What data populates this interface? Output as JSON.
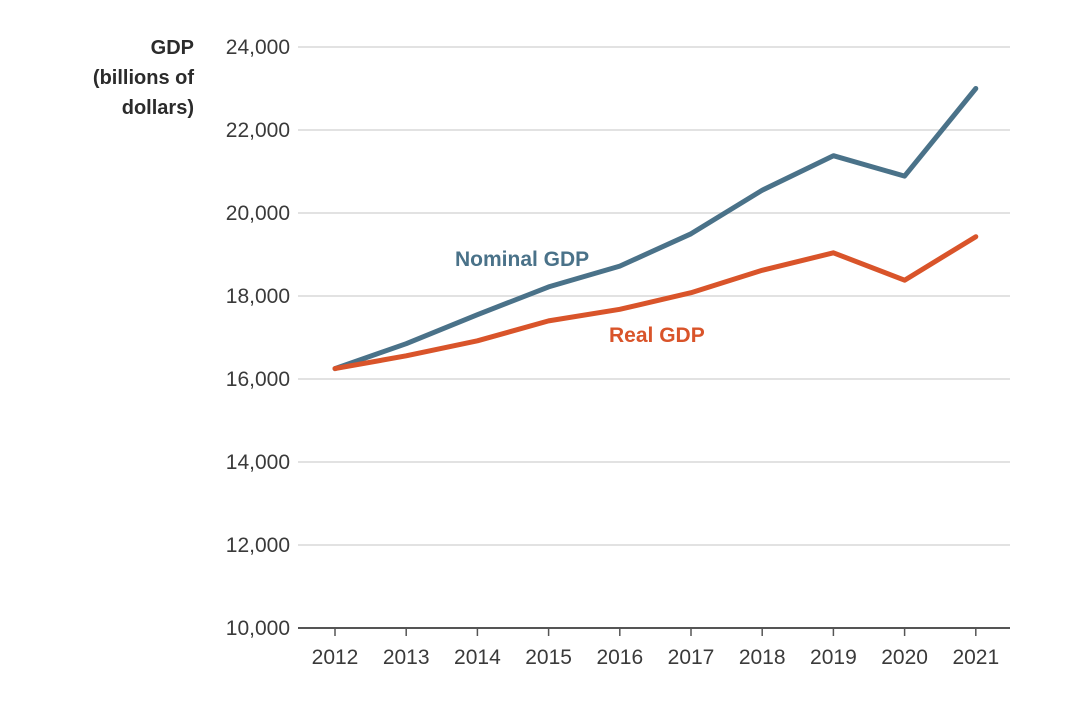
{
  "chart_data": {
    "type": "line",
    "ylabel_lines": [
      "GDP",
      "(billions of",
      "dollars)"
    ],
    "xlabel": "",
    "x": [
      "2012",
      "2013",
      "2014",
      "2015",
      "2016",
      "2017",
      "2018",
      "2019",
      "2020",
      "2021"
    ],
    "yticks": [
      "10,000",
      "12,000",
      "14,000",
      "16,000",
      "18,000",
      "20,000",
      "22,000",
      "24,000"
    ],
    "ylim": [
      10000,
      24000
    ],
    "grid": true,
    "series": [
      {
        "name": "Nominal GDP",
        "color": "#4a7289",
        "values": [
          16250,
          16850,
          17550,
          18220,
          18720,
          19500,
          20550,
          21380,
          20890,
          23000
        ]
      },
      {
        "name": "Real GDP",
        "color": "#d9542a",
        "values": [
          16250,
          16560,
          16920,
          17400,
          17680,
          18080,
          18620,
          19040,
          18380,
          19430
        ]
      }
    ]
  }
}
